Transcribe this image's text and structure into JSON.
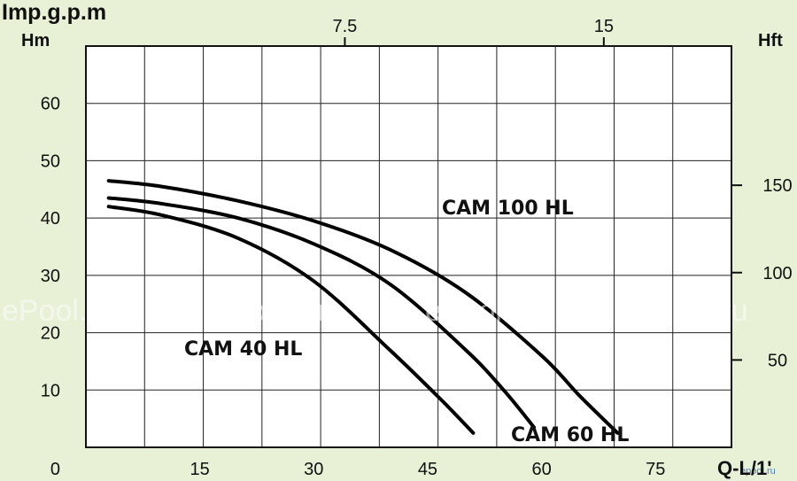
{
  "chart_data": {
    "type": "line",
    "units": {
      "top": "Imp.g.p.m",
      "left": "Hm",
      "right": "Hft",
      "bottom": "Q-L/1'"
    },
    "x_bottom_ticks": [
      0,
      15,
      30,
      45,
      60,
      75
    ],
    "x_top_ticks": [
      7.5,
      15
    ],
    "y_left_ticks": [
      10,
      20,
      30,
      40,
      50,
      60
    ],
    "y_right_ticks": [
      50,
      100,
      150
    ],
    "xlim": [
      0,
      85
    ],
    "ylim": [
      0,
      70
    ],
    "grid": true,
    "series": [
      {
        "name": "CAM 40 HL",
        "x": [
          3,
          10,
          20,
          30,
          40,
          47,
          51
        ],
        "y": [
          42,
          40.5,
          36.5,
          29,
          17,
          8,
          2.5
        ]
      },
      {
        "name": "CAM 60 HL",
        "x": [
          3,
          10,
          20,
          30,
          40,
          50,
          55,
          59
        ],
        "y": [
          43.5,
          42.5,
          40,
          35.5,
          28.5,
          17,
          10,
          3.5
        ]
      },
      {
        "name": "CAM 100 HL",
        "x": [
          3,
          10,
          20,
          30,
          40,
          50,
          60,
          65,
          70
        ],
        "y": [
          46.5,
          45.5,
          43,
          39.5,
          34.5,
          27,
          16,
          9,
          2.5
        ]
      }
    ]
  },
  "watermark": {
    "text": "ePool.ru",
    "small_text": "epool.ru"
  }
}
